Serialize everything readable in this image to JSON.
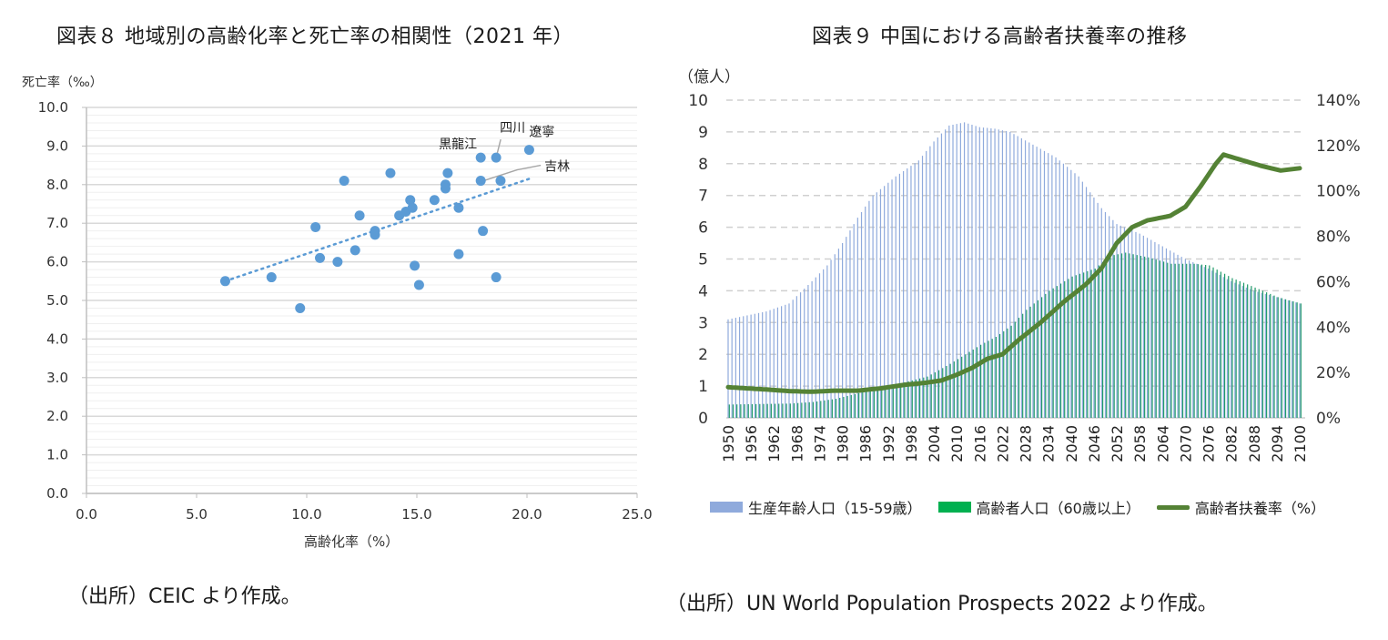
{
  "chart_data": [
    {
      "type": "scatter",
      "title": "図表８ 地域別の高齢化率と死亡率の相関性（2021 年）",
      "xlabel": "高齢化率（%）",
      "ylabel": "死亡率（‰）",
      "xlim": [
        0,
        25
      ],
      "ylim": [
        0,
        10
      ],
      "x_ticks": [
        "0.0",
        "5.0",
        "10.0",
        "15.0",
        "20.0",
        "25.0"
      ],
      "y_ticks": [
        "0.0",
        "1.0",
        "2.0",
        "3.0",
        "4.0",
        "5.0",
        "6.0",
        "7.0",
        "8.0",
        "9.0",
        "10.0"
      ],
      "grid": "horizontal-minor",
      "marker_color": "#5b9bd5",
      "points": [
        {
          "x": 6.3,
          "y": 5.5
        },
        {
          "x": 8.4,
          "y": 5.6
        },
        {
          "x": 9.7,
          "y": 4.8
        },
        {
          "x": 10.4,
          "y": 6.9
        },
        {
          "x": 10.6,
          "y": 6.1
        },
        {
          "x": 11.4,
          "y": 6.0
        },
        {
          "x": 11.7,
          "y": 8.1
        },
        {
          "x": 12.2,
          "y": 6.3
        },
        {
          "x": 12.4,
          "y": 7.2
        },
        {
          "x": 13.1,
          "y": 6.8
        },
        {
          "x": 13.1,
          "y": 6.7
        },
        {
          "x": 13.8,
          "y": 8.3
        },
        {
          "x": 14.2,
          "y": 7.2
        },
        {
          "x": 14.5,
          "y": 7.3
        },
        {
          "x": 14.7,
          "y": 7.6
        },
        {
          "x": 14.8,
          "y": 7.4
        },
        {
          "x": 14.9,
          "y": 5.9
        },
        {
          "x": 15.1,
          "y": 5.4
        },
        {
          "x": 15.8,
          "y": 7.6
        },
        {
          "x": 16.3,
          "y": 8.0
        },
        {
          "x": 16.3,
          "y": 7.9
        },
        {
          "x": 16.4,
          "y": 8.3
        },
        {
          "x": 16.9,
          "y": 7.4
        },
        {
          "x": 16.9,
          "y": 6.2
        },
        {
          "x": 17.9,
          "y": 8.7,
          "label": "黒龍江"
        },
        {
          "x": 17.9,
          "y": 8.1,
          "label": "吉林"
        },
        {
          "x": 18.0,
          "y": 6.8
        },
        {
          "x": 18.6,
          "y": 8.7,
          "label": "四川"
        },
        {
          "x": 18.6,
          "y": 5.6
        },
        {
          "x": 18.8,
          "y": 8.1
        },
        {
          "x": 20.1,
          "y": 8.9,
          "label": "遼寧"
        }
      ],
      "trendline": {
        "style": "dotted",
        "from": {
          "x": 6.3,
          "y": 5.5
        },
        "to": {
          "x": 20.1,
          "y": 8.15
        }
      },
      "annotations": [
        "四川",
        "遼寧",
        "黒龍江",
        "吉林"
      ]
    },
    {
      "type": "bar-line-combo",
      "title": "図表９ 中国における高齢者扶養率の推移",
      "ylabel_left": "（億人）",
      "ylim_left": [
        0,
        10
      ],
      "ylim_right": [
        0,
        140
      ],
      "y_ticks_left": [
        "0",
        "1",
        "2",
        "3",
        "4",
        "5",
        "6",
        "7",
        "8",
        "9",
        "10"
      ],
      "y_ticks_right": [
        "0%",
        "20%",
        "40%",
        "60%",
        "80%",
        "100%",
        "120%",
        "140%"
      ],
      "x_ticks": [
        "1950",
        "1956",
        "1962",
        "1968",
        "1974",
        "1980",
        "1986",
        "1992",
        "1998",
        "2004",
        "2010",
        "2016",
        "2022",
        "2028",
        "2034",
        "2040",
        "2046",
        "2052",
        "2058",
        "2064",
        "2070",
        "2076",
        "2082",
        "2088",
        "2094",
        "2100"
      ],
      "grid": "horizontal-dashed",
      "legend_position": "bottom",
      "series": [
        {
          "name": "生産年齢人口（15-59歳）",
          "type": "bar",
          "color": "#8faadc",
          "axis": "left",
          "keyframes": [
            [
              1950,
              3.1
            ],
            [
              1960,
              3.35
            ],
            [
              1966,
              3.6
            ],
            [
              1972,
              4.3
            ],
            [
              1976,
              4.8
            ],
            [
              1980,
              5.5
            ],
            [
              1984,
              6.3
            ],
            [
              1988,
              7.0
            ],
            [
              1994,
              7.6
            ],
            [
              2000,
              8.1
            ],
            [
              2004,
              8.7
            ],
            [
              2008,
              9.2
            ],
            [
              2012,
              9.3
            ],
            [
              2016,
              9.15
            ],
            [
              2020,
              9.1
            ],
            [
              2024,
              9.0
            ],
            [
              2030,
              8.6
            ],
            [
              2036,
              8.2
            ],
            [
              2042,
              7.6
            ],
            [
              2048,
              6.6
            ],
            [
              2052,
              6.1
            ],
            [
              2058,
              5.8
            ],
            [
              2064,
              5.4
            ],
            [
              2070,
              5.0
            ],
            [
              2076,
              4.7
            ],
            [
              2082,
              4.3
            ],
            [
              2088,
              4.0
            ],
            [
              2094,
              3.8
            ],
            [
              2100,
              3.6
            ]
          ]
        },
        {
          "name": "高齢者人口（60歳以上）",
          "type": "bar",
          "color": "#1f9a6a",
          "axis": "left",
          "keyframes": [
            [
              1950,
              0.42
            ],
            [
              1960,
              0.44
            ],
            [
              1966,
              0.45
            ],
            [
              1972,
              0.5
            ],
            [
              1978,
              0.6
            ],
            [
              1984,
              0.78
            ],
            [
              1990,
              0.95
            ],
            [
              1996,
              1.12
            ],
            [
              2002,
              1.3
            ],
            [
              2008,
              1.7
            ],
            [
              2012,
              2.0
            ],
            [
              2016,
              2.3
            ],
            [
              2020,
              2.55
            ],
            [
              2024,
              2.9
            ],
            [
              2028,
              3.4
            ],
            [
              2034,
              4.0
            ],
            [
              2040,
              4.45
            ],
            [
              2046,
              4.7
            ],
            [
              2050,
              5.1
            ],
            [
              2054,
              5.2
            ],
            [
              2060,
              5.05
            ],
            [
              2066,
              4.85
            ],
            [
              2072,
              4.85
            ],
            [
              2076,
              4.8
            ],
            [
              2082,
              4.4
            ],
            [
              2088,
              4.1
            ],
            [
              2094,
              3.8
            ],
            [
              2100,
              3.6
            ]
          ]
        },
        {
          "name": "高齢者扶養率（%）",
          "type": "line",
          "color": "#548235",
          "axis": "right",
          "keyframes": [
            [
              1950,
              13.5
            ],
            [
              1955,
              13
            ],
            [
              1960,
              12.5
            ],
            [
              1966,
              11.8
            ],
            [
              1972,
              11.5
            ],
            [
              1978,
              12
            ],
            [
              1984,
              12
            ],
            [
              1990,
              13
            ],
            [
              1996,
              14.5
            ],
            [
              2002,
              15.5
            ],
            [
              2006,
              16.5
            ],
            [
              2010,
              19
            ],
            [
              2014,
              22
            ],
            [
              2018,
              26
            ],
            [
              2022,
              28
            ],
            [
              2026,
              34
            ],
            [
              2032,
              42
            ],
            [
              2038,
              51
            ],
            [
              2044,
              59
            ],
            [
              2048,
              66
            ],
            [
              2052,
              77
            ],
            [
              2056,
              84
            ],
            [
              2060,
              87
            ],
            [
              2066,
              89
            ],
            [
              2070,
              93
            ],
            [
              2074,
              102
            ],
            [
              2078,
              112
            ],
            [
              2080,
              116
            ],
            [
              2084,
              114
            ],
            [
              2090,
              111
            ],
            [
              2095,
              109
            ],
            [
              2100,
              110
            ]
          ]
        }
      ]
    }
  ],
  "captions": {
    "left_source": "（出所）CEIC より作成。",
    "right_source": "（出所）UN World Population Prospects 2022 より作成。"
  }
}
